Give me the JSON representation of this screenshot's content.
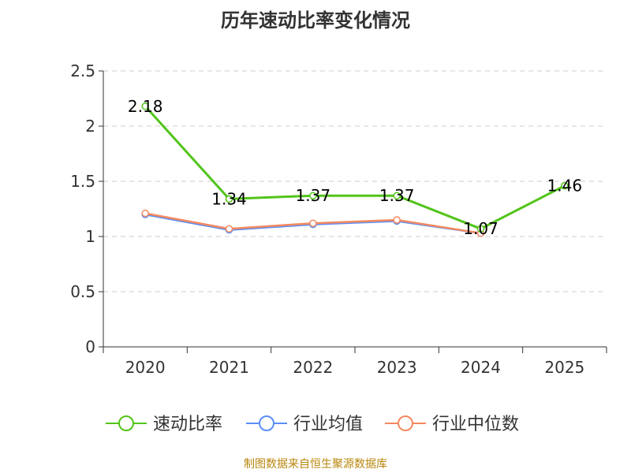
{
  "title": "历年速动比率变化情况",
  "source_note": "制图数据来自恒生聚源数据库",
  "chart_data": {
    "type": "line",
    "categories": [
      "2020",
      "2021",
      "2022",
      "2023",
      "2024",
      "2025"
    ],
    "ylim": [
      0,
      2.5
    ],
    "yticks": [
      "0",
      "0.5",
      "1",
      "1.5",
      "2",
      "2.5"
    ],
    "ytick_values": [
      0,
      0.5,
      1,
      1.5,
      2,
      2.5
    ],
    "grid": true,
    "legend_position": "bottom",
    "series": [
      {
        "name": "速动比率",
        "color": "#52c41a",
        "values": [
          2.18,
          1.34,
          1.37,
          1.37,
          1.07,
          1.46
        ],
        "labels": [
          "2.18",
          "1.34",
          "1.37",
          "1.37",
          "1.07",
          "1.46"
        ]
      },
      {
        "name": "行业均值",
        "color": "#5b8ff9",
        "values": [
          1.2,
          1.06,
          1.11,
          1.14,
          1.03,
          null
        ]
      },
      {
        "name": "行业中位数",
        "color": "#f4895f",
        "values": [
          1.21,
          1.07,
          1.12,
          1.15,
          1.03,
          null
        ]
      }
    ]
  }
}
